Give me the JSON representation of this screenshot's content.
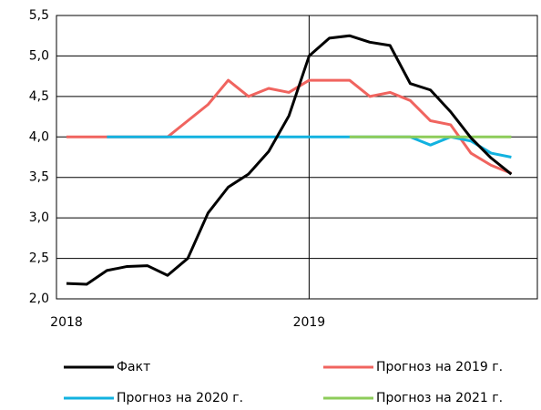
{
  "chart_data": {
    "type": "line",
    "categories": [
      "2018",
      null,
      null,
      null,
      null,
      null,
      null,
      null,
      null,
      null,
      null,
      null,
      "2019",
      null,
      null,
      null,
      null,
      null,
      null,
      null,
      null,
      null,
      null
    ],
    "series": [
      {
        "name": "Факт",
        "color": "#000000",
        "values": [
          2.19,
          2.18,
          2.35,
          2.4,
          2.41,
          2.29,
          2.5,
          3.06,
          3.38,
          3.54,
          3.82,
          4.26,
          5.0,
          5.22,
          5.25,
          5.17,
          5.13,
          4.66,
          4.58,
          4.31,
          3.99,
          3.74,
          3.54
        ]
      },
      {
        "name": "Прогноз на 2019 г.",
        "color": "#f0645f",
        "values": [
          4.0,
          4.0,
          4.0,
          4.0,
          4.0,
          4.0,
          4.2,
          4.4,
          4.7,
          4.5,
          4.6,
          4.55,
          4.7,
          4.7,
          4.7,
          4.5,
          4.55,
          4.45,
          4.2,
          4.15,
          3.8,
          3.65,
          3.55
        ]
      },
      {
        "name": "Прогноз на 2020 г.",
        "color": "#12b2e0",
        "values": [
          null,
          null,
          4.0,
          4.0,
          4.0,
          4.0,
          4.0,
          4.0,
          4.0,
          4.0,
          4.0,
          4.0,
          4.0,
          4.0,
          4.0,
          4.0,
          4.0,
          4.0,
          3.9,
          4.0,
          3.95,
          3.8,
          3.75
        ]
      },
      {
        "name": "Прогноз на 2021 г.",
        "color": "#8dcc5a",
        "values": [
          null,
          null,
          null,
          null,
          null,
          null,
          null,
          null,
          null,
          null,
          null,
          null,
          null,
          null,
          4.0,
          4.0,
          4.0,
          4.0,
          4.0,
          4.0,
          4.0,
          4.0,
          4.0
        ]
      }
    ],
    "ylim": [
      2.0,
      5.5
    ],
    "yticks": [
      {
        "value": 2.0,
        "label": "2,0"
      },
      {
        "value": 2.5,
        "label": "2,5"
      },
      {
        "value": 3.0,
        "label": "3,0"
      },
      {
        "value": 3.5,
        "label": "3,5"
      },
      {
        "value": 4.0,
        "label": "4,0"
      },
      {
        "value": 4.5,
        "label": "4,5"
      },
      {
        "value": 5.0,
        "label": "5,0"
      },
      {
        "value": 5.5,
        "label": "5,5"
      }
    ],
    "grid": true
  }
}
